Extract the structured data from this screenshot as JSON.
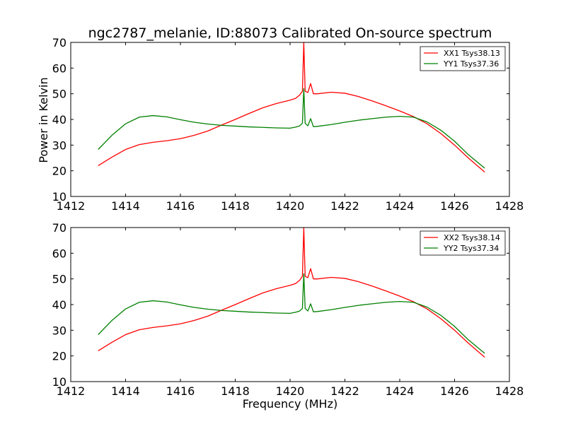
{
  "figure": {
    "title": "ngc2787_melanie, ID:88073 Calibrated On-source spectrum",
    "ylabel": "Power in Kelvin",
    "xlabel": "Frequency (MHz)"
  },
  "colors": {
    "red": "#ff0000",
    "green": "#008000",
    "axes": "#000000",
    "background": "#ffffff"
  },
  "chart_data": [
    {
      "type": "line",
      "xlim": [
        1412,
        1428
      ],
      "ylim": [
        10,
        70
      ],
      "x_ticks": [
        1412,
        1414,
        1416,
        1418,
        1420,
        1422,
        1424,
        1426,
        1428
      ],
      "y_ticks": [
        10,
        20,
        30,
        40,
        50,
        60,
        70
      ],
      "ylabel": "Power in Kelvin",
      "title": "ngc2787_melanie, ID:88073 Calibrated On-source spectrum",
      "legend_position": "top-right",
      "grid": false,
      "series": [
        {
          "name": "XX1 Tsys38.13",
          "color": "#ff0000",
          "points": [
            [
              1413.0,
              22.0
            ],
            [
              1413.5,
              25.3
            ],
            [
              1414.0,
              28.3
            ],
            [
              1414.5,
              30.2
            ],
            [
              1415.0,
              31.1
            ],
            [
              1415.5,
              31.7
            ],
            [
              1416.0,
              32.5
            ],
            [
              1416.5,
              33.8
            ],
            [
              1417.0,
              35.5
            ],
            [
              1417.5,
              37.8
            ],
            [
              1418.0,
              40.0
            ],
            [
              1418.5,
              42.3
            ],
            [
              1419.0,
              44.5
            ],
            [
              1419.5,
              46.2
            ],
            [
              1420.0,
              47.5
            ],
            [
              1420.2,
              48.2
            ],
            [
              1420.35,
              49.5
            ],
            [
              1420.45,
              51.0
            ],
            [
              1420.5,
              70.0
            ],
            [
              1420.55,
              51.0
            ],
            [
              1420.65,
              50.5
            ],
            [
              1420.75,
              54.0
            ],
            [
              1420.85,
              50.0
            ],
            [
              1421.0,
              50.0
            ],
            [
              1421.5,
              50.6
            ],
            [
              1422.0,
              50.2
            ],
            [
              1422.5,
              48.9
            ],
            [
              1423.0,
              47.2
            ],
            [
              1423.5,
              45.3
            ],
            [
              1424.0,
              43.3
            ],
            [
              1424.5,
              41.1
            ],
            [
              1425.0,
              38.3
            ],
            [
              1425.5,
              34.5
            ],
            [
              1426.0,
              30.0
            ],
            [
              1426.5,
              25.0
            ],
            [
              1427.1,
              19.5
            ]
          ]
        },
        {
          "name": "YY1 Tsys37.36",
          "color": "#008000",
          "points": [
            [
              1413.0,
              28.3
            ],
            [
              1413.5,
              33.8
            ],
            [
              1414.0,
              38.3
            ],
            [
              1414.5,
              40.9
            ],
            [
              1415.0,
              41.5
            ],
            [
              1415.5,
              41.0
            ],
            [
              1416.0,
              39.9
            ],
            [
              1416.5,
              38.9
            ],
            [
              1417.0,
              38.2
            ],
            [
              1417.5,
              37.7
            ],
            [
              1418.0,
              37.4
            ],
            [
              1418.5,
              37.1
            ],
            [
              1419.0,
              36.9
            ],
            [
              1419.5,
              36.7
            ],
            [
              1420.0,
              36.6
            ],
            [
              1420.2,
              37.0
            ],
            [
              1420.35,
              37.5
            ],
            [
              1420.45,
              38.5
            ],
            [
              1420.5,
              52.0
            ],
            [
              1420.55,
              38.5
            ],
            [
              1420.65,
              37.5
            ],
            [
              1420.75,
              40.3
            ],
            [
              1420.85,
              37.2
            ],
            [
              1421.0,
              37.3
            ],
            [
              1421.5,
              38.0
            ],
            [
              1422.0,
              38.9
            ],
            [
              1422.5,
              39.7
            ],
            [
              1423.0,
              40.3
            ],
            [
              1423.5,
              40.9
            ],
            [
              1424.0,
              41.2
            ],
            [
              1424.5,
              40.9
            ],
            [
              1425.0,
              39.0
            ],
            [
              1425.5,
              35.8
            ],
            [
              1426.0,
              31.5
            ],
            [
              1426.5,
              26.3
            ],
            [
              1427.1,
              21.0
            ]
          ]
        }
      ]
    },
    {
      "type": "line",
      "xlim": [
        1412,
        1428
      ],
      "ylim": [
        10,
        70
      ],
      "x_ticks": [
        1412,
        1414,
        1416,
        1418,
        1420,
        1422,
        1424,
        1426,
        1428
      ],
      "y_ticks": [
        10,
        20,
        30,
        40,
        50,
        60,
        70
      ],
      "xlabel": "Frequency (MHz)",
      "legend_position": "top-right",
      "grid": false,
      "series": [
        {
          "name": "XX2 Tsys38.14",
          "color": "#ff0000",
          "points": [
            [
              1413.0,
              22.0
            ],
            [
              1413.5,
              25.3
            ],
            [
              1414.0,
              28.3
            ],
            [
              1414.5,
              30.2
            ],
            [
              1415.0,
              31.1
            ],
            [
              1415.5,
              31.7
            ],
            [
              1416.0,
              32.5
            ],
            [
              1416.5,
              33.8
            ],
            [
              1417.0,
              35.5
            ],
            [
              1417.5,
              37.8
            ],
            [
              1418.0,
              40.0
            ],
            [
              1418.5,
              42.3
            ],
            [
              1419.0,
              44.5
            ],
            [
              1419.5,
              46.2
            ],
            [
              1420.0,
              47.5
            ],
            [
              1420.2,
              48.2
            ],
            [
              1420.35,
              49.5
            ],
            [
              1420.45,
              51.0
            ],
            [
              1420.5,
              70.0
            ],
            [
              1420.55,
              51.0
            ],
            [
              1420.65,
              50.5
            ],
            [
              1420.75,
              54.0
            ],
            [
              1420.85,
              50.0
            ],
            [
              1421.0,
              50.0
            ],
            [
              1421.5,
              50.6
            ],
            [
              1422.0,
              50.2
            ],
            [
              1422.5,
              48.9
            ],
            [
              1423.0,
              47.2
            ],
            [
              1423.5,
              45.3
            ],
            [
              1424.0,
              43.3
            ],
            [
              1424.5,
              41.1
            ],
            [
              1425.0,
              38.3
            ],
            [
              1425.5,
              34.5
            ],
            [
              1426.0,
              30.0
            ],
            [
              1426.5,
              25.0
            ],
            [
              1427.1,
              19.5
            ]
          ]
        },
        {
          "name": "YY2 Tsys37.34",
          "color": "#008000",
          "points": [
            [
              1413.0,
              28.3
            ],
            [
              1413.5,
              33.8
            ],
            [
              1414.0,
              38.3
            ],
            [
              1414.5,
              40.9
            ],
            [
              1415.0,
              41.5
            ],
            [
              1415.5,
              41.0
            ],
            [
              1416.0,
              39.9
            ],
            [
              1416.5,
              38.9
            ],
            [
              1417.0,
              38.2
            ],
            [
              1417.5,
              37.7
            ],
            [
              1418.0,
              37.4
            ],
            [
              1418.5,
              37.1
            ],
            [
              1419.0,
              36.9
            ],
            [
              1419.5,
              36.7
            ],
            [
              1420.0,
              36.6
            ],
            [
              1420.2,
              37.0
            ],
            [
              1420.35,
              37.5
            ],
            [
              1420.45,
              38.5
            ],
            [
              1420.5,
              52.0
            ],
            [
              1420.55,
              38.5
            ],
            [
              1420.65,
              37.5
            ],
            [
              1420.75,
              40.3
            ],
            [
              1420.85,
              37.2
            ],
            [
              1421.0,
              37.3
            ],
            [
              1421.5,
              38.0
            ],
            [
              1422.0,
              38.9
            ],
            [
              1422.5,
              39.7
            ],
            [
              1423.0,
              40.3
            ],
            [
              1423.5,
              40.9
            ],
            [
              1424.0,
              41.2
            ],
            [
              1424.5,
              40.9
            ],
            [
              1425.0,
              39.0
            ],
            [
              1425.5,
              35.8
            ],
            [
              1426.0,
              31.5
            ],
            [
              1426.5,
              26.3
            ],
            [
              1427.1,
              21.0
            ]
          ]
        }
      ]
    }
  ]
}
